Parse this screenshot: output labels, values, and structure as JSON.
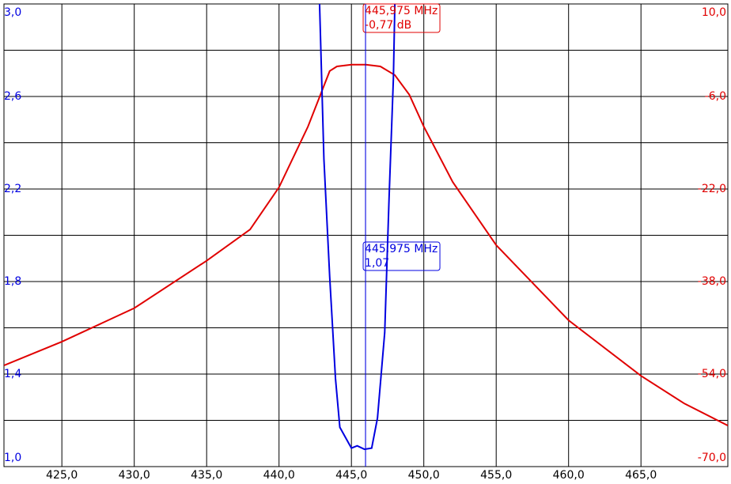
{
  "chart_data": {
    "type": "line",
    "xlim": [
      421,
      471
    ],
    "xticks": [
      {
        "value": 425,
        "label": "425,0"
      },
      {
        "value": 430,
        "label": "430,0"
      },
      {
        "value": 435,
        "label": "435,0"
      },
      {
        "value": 440,
        "label": "440,0"
      },
      {
        "value": 445,
        "label": "445,0"
      },
      {
        "value": 450,
        "label": "450,0"
      },
      {
        "value": 455,
        "label": "455,0"
      },
      {
        "value": 460,
        "label": "460,0"
      },
      {
        "value": 465,
        "label": "465,0"
      }
    ],
    "ylim": [
      1.0,
      3.0
    ],
    "yticks": [
      {
        "value": 3.0,
        "label": "3,0"
      },
      {
        "value": 2.6,
        "label": "2,6"
      },
      {
        "value": 2.2,
        "label": "2,2"
      },
      {
        "value": 1.8,
        "label": "1,8"
      },
      {
        "value": 1.4,
        "label": "1,4"
      },
      {
        "value": 1.0,
        "label": "1,0"
      }
    ],
    "y_minor_ticks": [
      2.8,
      2.4,
      2.0,
      1.6,
      1.2
    ],
    "y2lim": [
      -70,
      10
    ],
    "y2ticks": [
      {
        "value": 10,
        "label": "10,0"
      },
      {
        "value": -6,
        "label": "-6,0"
      },
      {
        "value": -22,
        "label": "-22,0"
      },
      {
        "value": -38,
        "label": "-38,0"
      },
      {
        "value": -54,
        "label": "-54,0"
      },
      {
        "value": -70,
        "label": "-70,0"
      }
    ],
    "grid": true,
    "series": [
      {
        "color": "#e00000",
        "axis": "y2",
        "x": [
          421,
          425,
          430,
          435,
          438,
          440,
          442,
          443.5,
          444,
          445,
          446,
          447,
          448,
          449,
          450,
          452,
          455,
          460,
          465,
          468,
          471
        ],
        "values": [
          -52.5,
          -48.4,
          -42.6,
          -34.4,
          -29.0,
          -21.7,
          -11.2,
          -1.6,
          -0.8,
          -0.5,
          -0.5,
          -0.8,
          -2.3,
          -5.7,
          -11.2,
          -20.8,
          -31.7,
          -44.7,
          -54.3,
          -59.1,
          -62.9
        ]
      },
      {
        "color": "#0000e0",
        "axis": "y",
        "x": [
          442.8,
          443.1,
          443.5,
          443.9,
          444.2,
          445.0,
          445.4,
          445.9,
          446.4,
          446.8,
          447.3,
          447.6,
          447.9,
          448.0
        ],
        "values": [
          3.0,
          2.33,
          1.82,
          1.38,
          1.17,
          1.08,
          1.09,
          1.075,
          1.08,
          1.21,
          1.58,
          2.16,
          2.68,
          3.0
        ]
      }
    ],
    "markers": [
      {
        "x": 445.975,
        "x_label": "445,975 MHz",
        "value": -0.77,
        "value_label": "-0,77 dB",
        "axis": "y2",
        "color": "#e00000"
      },
      {
        "x": 445.975,
        "x_label": "445,975 MHz",
        "value": 1.07,
        "value_label": "1,07",
        "axis": "y",
        "color": "#0000e0"
      }
    ]
  }
}
